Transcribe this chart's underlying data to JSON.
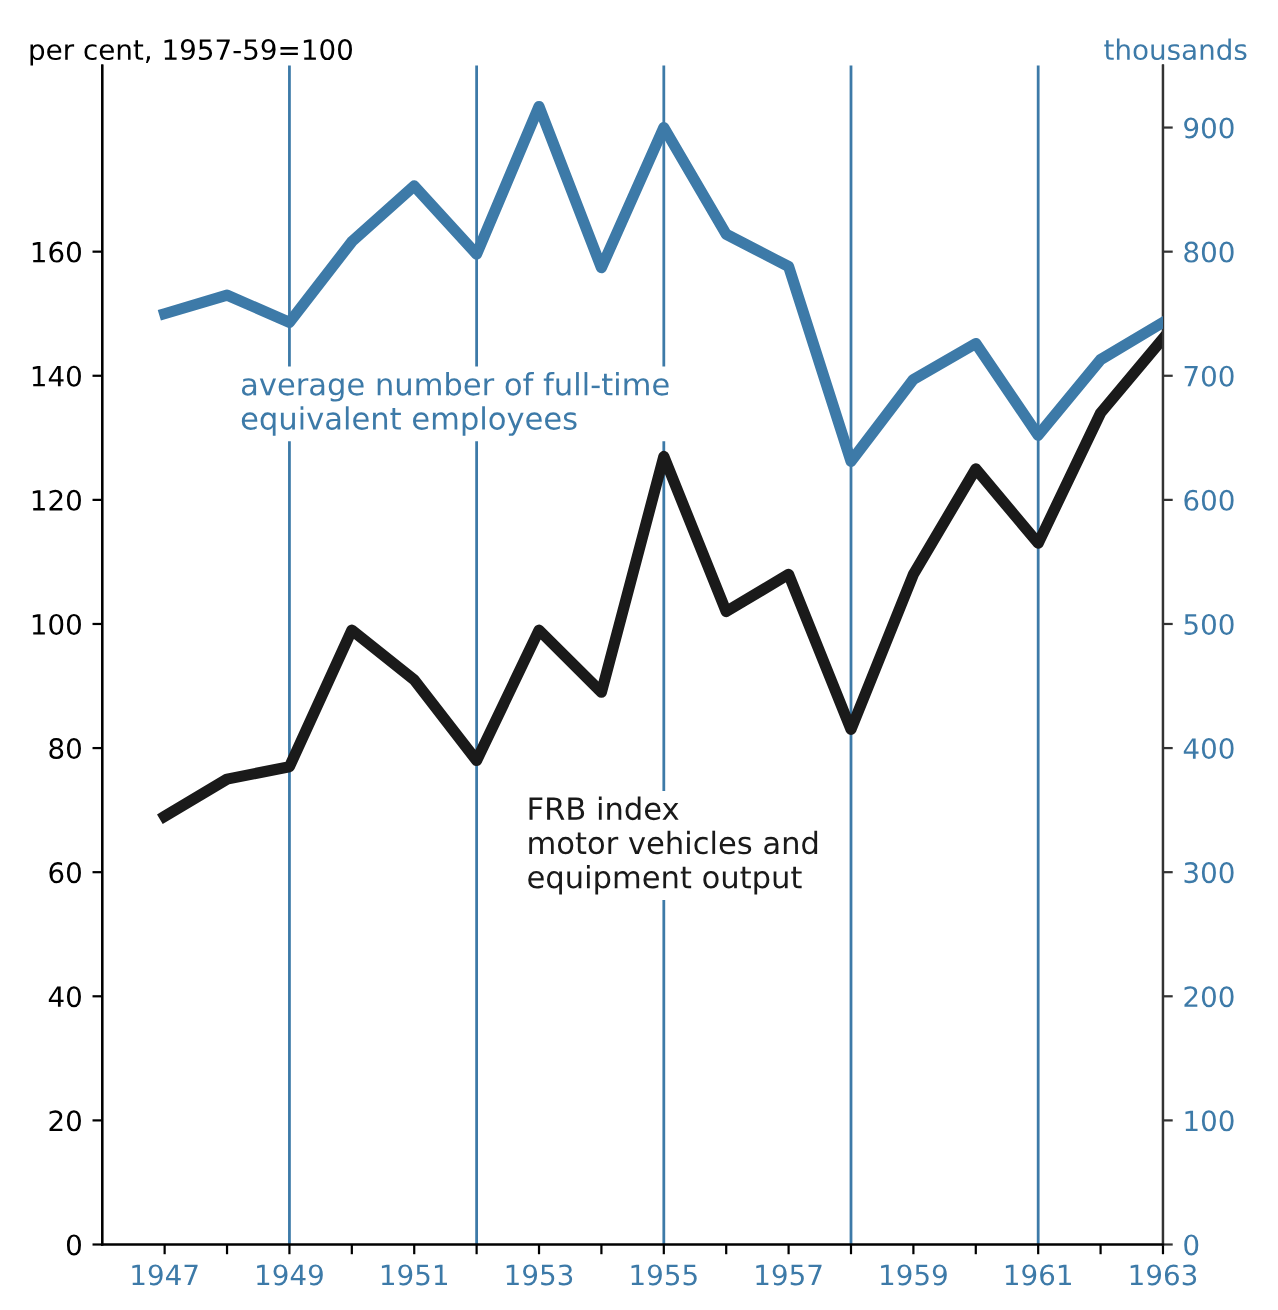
{
  "chart_data": {
    "type": "line",
    "ylabel": "per cent, 1957-59=100",
    "y2label": "thousands",
    "x": [
      1947,
      1948,
      1949,
      1950,
      1951,
      1952,
      1953,
      1954,
      1955,
      1956,
      1957,
      1958,
      1959,
      1960,
      1961,
      1962,
      1963
    ],
    "series": [
      {
        "name": "average number of full-time\nequivalent employees",
        "color": "#3d7aa8",
        "axis": "y2",
        "values": [
          750,
          765,
          743,
          808,
          853,
          798,
          917,
          787,
          900,
          814,
          788,
          631,
          697,
          726,
          652,
          713,
          743
        ]
      },
      {
        "name": "FRB index\nmotor vehicles and\nequipment output",
        "color": "#1a1a1a",
        "values": [
          69,
          75,
          77,
          99,
          91,
          78,
          99,
          89,
          127,
          102,
          108,
          83,
          108,
          125,
          113,
          134,
          146
        ]
      }
    ],
    "xlim": [
      1946,
      1963
    ],
    "xticks": [
      1947,
      {
        "value": 1948,
        "label": null
      },
      1949,
      {
        "value": 1950,
        "label": null
      },
      1951,
      {
        "value": 1952,
        "label": null
      },
      1953,
      {
        "value": 1954,
        "label": null
      },
      1955,
      {
        "value": 1956,
        "label": null
      },
      1957,
      {
        "value": 1958,
        "label": null
      },
      1959,
      {
        "value": 1960,
        "label": null
      },
      1961,
      {
        "value": 1962,
        "label": null
      },
      1963
    ],
    "ylim": [
      0,
      190
    ],
    "yticks": [
      0,
      20,
      40,
      60,
      80,
      100,
      120,
      140,
      160
    ],
    "y2lim": [
      0,
      950
    ],
    "y2ticks": [
      0,
      100,
      200,
      300,
      400,
      500,
      600,
      700,
      800,
      900
    ],
    "ref_lines": [
      {
        "axis": "x",
        "value": 1949,
        "color": "#3d7aa8"
      },
      {
        "axis": "x",
        "value": 1952,
        "color": "#3d7aa8"
      },
      {
        "axis": "x",
        "value": 1955,
        "color": "#3d7aa8"
      },
      {
        "axis": "x",
        "value": 1958,
        "color": "#3d7aa8"
      },
      {
        "axis": "x",
        "value": 1961,
        "color": "#3d7aa8"
      }
    ],
    "grid": false,
    "legend": false,
    "marker": "none",
    "line_style": "solid"
  }
}
